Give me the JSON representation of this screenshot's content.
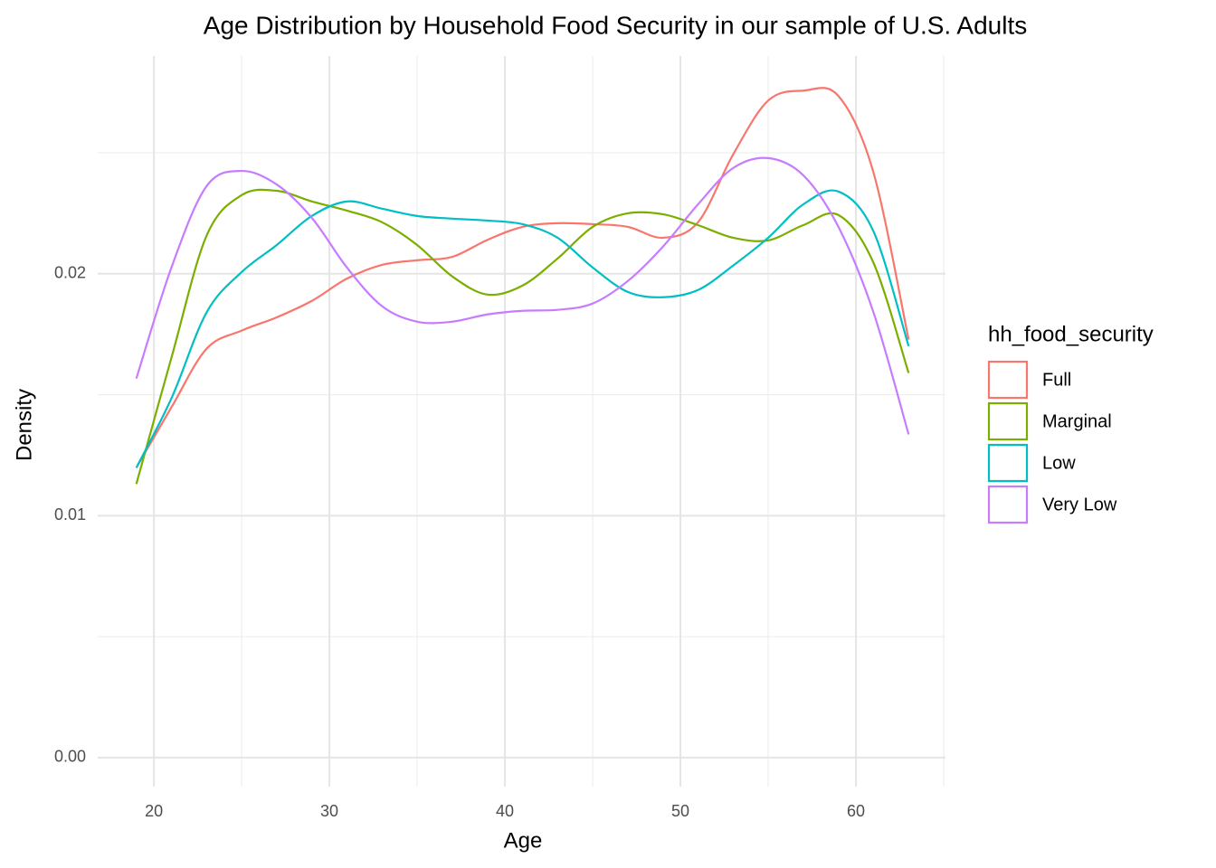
{
  "chart_data": {
    "type": "line",
    "title": "Age Distribution by Household Food Security in our sample of U.S. Adults",
    "x_label": "Age",
    "y_label": "Density",
    "legend_title": "hh_food_security",
    "x": [
      19,
      21,
      23,
      25,
      27,
      29,
      31,
      33,
      35,
      37,
      39,
      41,
      43,
      45,
      47,
      49,
      51,
      53,
      55,
      57,
      59,
      61,
      63
    ],
    "series": [
      {
        "name": "Full",
        "color": "#F8766D",
        "values": [
          0.01198,
          0.01448,
          0.0169,
          0.01765,
          0.0182,
          0.01888,
          0.0198,
          0.02037,
          0.02056,
          0.0207,
          0.0214,
          0.02194,
          0.02209,
          0.02205,
          0.02194,
          0.02149,
          0.02213,
          0.02493,
          0.02716,
          0.02757,
          0.02735,
          0.02418,
          0.01728
        ]
      },
      {
        "name": "Marginal",
        "color": "#7CAE00",
        "values": [
          0.01131,
          0.01653,
          0.02157,
          0.02325,
          0.02343,
          0.02299,
          0.02261,
          0.02213,
          0.02119,
          0.01989,
          0.01914,
          0.01951,
          0.02063,
          0.02194,
          0.0225,
          0.02246,
          0.02201,
          0.02149,
          0.02138,
          0.02201,
          0.02243,
          0.02045,
          0.0159
        ]
      },
      {
        "name": "Low",
        "color": "#00BFC4",
        "values": [
          0.01198,
          0.01485,
          0.0184,
          0.02007,
          0.02119,
          0.02239,
          0.02299,
          0.02269,
          0.02239,
          0.02228,
          0.0222,
          0.02205,
          0.02149,
          0.02026,
          0.01925,
          0.01903,
          0.01933,
          0.02034,
          0.02149,
          0.02287,
          0.0234,
          0.02175,
          0.01701
        ]
      },
      {
        "name": "Very Low",
        "color": "#C77CFF",
        "values": [
          0.01567,
          0.02026,
          0.02362,
          0.02425,
          0.02369,
          0.02231,
          0.02026,
          0.01866,
          0.01802,
          0.01802,
          0.01832,
          0.01847,
          0.01851,
          0.01877,
          0.0197,
          0.02112,
          0.02287,
          0.02437,
          0.02478,
          0.02407,
          0.02194,
          0.0184,
          0.01336
        ]
      }
    ],
    "xlim": [
      16.8,
      65.1
    ],
    "ylim": [
      -0.0012,
      0.029
    ],
    "xticks": [
      20,
      30,
      40,
      50,
      60
    ],
    "x_minor_ticks": [
      25,
      35,
      45,
      55,
      65
    ],
    "yticks": [
      {
        "value": 0,
        "label": "0.00"
      },
      0.01,
      0.02
    ],
    "y_minor_ticks": [
      0.005,
      0.015,
      0.025
    ],
    "grid": true,
    "legend_position": "right"
  }
}
